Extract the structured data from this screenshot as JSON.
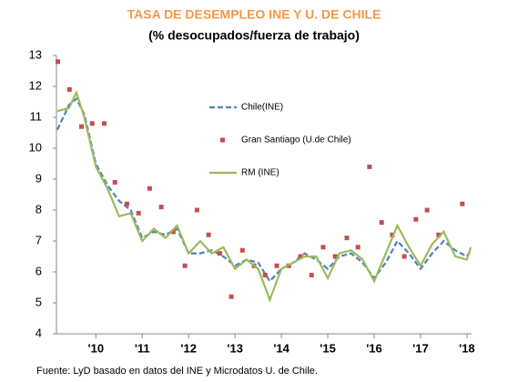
{
  "chart_data": {
    "type": "line",
    "title": "TASA  DE  DESEMPLEO INE Y U. DE CHILE",
    "subtitle": "(% desocupados/fuerza de trabajo)",
    "source": "Fuente: LyD basado en datos del INE y Microdatos U. de Chile.",
    "xlim": [
      2009.15,
      2018.1
    ],
    "xticks": [
      {
        "value": 2010,
        "label": "'10"
      },
      {
        "value": 2011,
        "label": "'11"
      },
      {
        "value": 2012,
        "label": "'12"
      },
      {
        "value": 2013,
        "label": "'13"
      },
      {
        "value": 2014,
        "label": "'14"
      },
      {
        "value": 2015,
        "label": "'15"
      },
      {
        "value": 2016,
        "label": "'16"
      },
      {
        "value": 2017,
        "label": "'17"
      },
      {
        "value": 2018,
        "label": "'18"
      }
    ],
    "ylim": [
      4,
      13
    ],
    "yticks": [
      4,
      5,
      6,
      7,
      8,
      9,
      10,
      11,
      12,
      13
    ],
    "series": [
      {
        "name": "Chile(INE)",
        "color": "#4f81bd",
        "kind": "line",
        "dashed": true,
        "x": [
          2009.17,
          2009.42,
          2009.58,
          2009.75,
          2010.0,
          2010.25,
          2010.5,
          2010.75,
          2011.0,
          2011.25,
          2011.5,
          2011.75,
          2012.0,
          2012.25,
          2012.5,
          2012.75,
          2013.0,
          2013.25,
          2013.5,
          2013.75,
          2014.0,
          2014.25,
          2014.5,
          2014.75,
          2015.0,
          2015.25,
          2015.5,
          2015.75,
          2016.0,
          2016.25,
          2016.5,
          2016.75,
          2017.0,
          2017.25,
          2017.5,
          2017.75,
          2018.0,
          2018.08
        ],
        "values": [
          10.6,
          11.4,
          11.6,
          11.1,
          9.5,
          8.8,
          8.3,
          8.0,
          7.1,
          7.3,
          7.2,
          7.4,
          6.6,
          6.6,
          6.7,
          6.5,
          6.2,
          6.4,
          6.3,
          5.7,
          6.1,
          6.3,
          6.6,
          6.4,
          6.1,
          6.5,
          6.6,
          6.3,
          5.8,
          6.3,
          7.0,
          6.6,
          6.1,
          6.6,
          7.0,
          6.7,
          6.5,
          6.7
        ]
      },
      {
        "name": "Gran Santiago (U.de Chile)",
        "color": "#c0504d",
        "kind": "points",
        "dashed": false,
        "x": [
          2009.18,
          2009.43,
          2009.69,
          2009.92,
          2010.18,
          2010.41,
          2010.67,
          2010.92,
          2011.16,
          2011.41,
          2011.67,
          2011.92,
          2012.18,
          2012.43,
          2012.67,
          2012.92,
          2013.16,
          2013.41,
          2013.65,
          2013.9,
          2014.16,
          2014.41,
          2014.65,
          2014.9,
          2015.16,
          2015.41,
          2015.65,
          2015.9,
          2016.16,
          2016.39,
          2016.65,
          2016.9,
          2017.14,
          2017.39,
          2017.9
        ],
        "values": [
          12.8,
          11.9,
          10.7,
          10.8,
          10.8,
          8.9,
          8.2,
          7.9,
          8.7,
          8.1,
          7.3,
          6.2,
          8.0,
          7.2,
          6.6,
          5.2,
          6.7,
          6.2,
          5.9,
          6.2,
          6.2,
          6.5,
          5.9,
          6.8,
          6.5,
          7.1,
          6.8,
          9.4,
          7.6,
          7.2,
          6.5,
          7.7,
          8.0,
          7.2,
          8.2
        ]
      },
      {
        "name": "RM (INE)",
        "color": "#9bbb59",
        "kind": "line",
        "dashed": false,
        "x": [
          2009.17,
          2009.42,
          2009.58,
          2009.75,
          2010.0,
          2010.25,
          2010.5,
          2010.75,
          2011.0,
          2011.25,
          2011.5,
          2011.75,
          2012.0,
          2012.25,
          2012.5,
          2012.75,
          2013.0,
          2013.25,
          2013.5,
          2013.75,
          2014.0,
          2014.25,
          2014.5,
          2014.75,
          2015.0,
          2015.25,
          2015.5,
          2015.75,
          2016.0,
          2016.25,
          2016.5,
          2016.75,
          2017.0,
          2017.25,
          2017.5,
          2017.75,
          2018.0,
          2018.08
        ],
        "values": [
          11.2,
          11.3,
          11.8,
          11.0,
          9.4,
          8.7,
          7.8,
          7.9,
          7.0,
          7.4,
          7.1,
          7.5,
          6.6,
          7.0,
          6.6,
          6.8,
          6.1,
          6.4,
          6.1,
          5.1,
          6.1,
          6.3,
          6.5,
          6.5,
          5.8,
          6.6,
          6.7,
          6.4,
          5.7,
          6.6,
          7.5,
          6.8,
          6.2,
          6.9,
          7.3,
          6.5,
          6.4,
          6.8
        ]
      }
    ]
  }
}
